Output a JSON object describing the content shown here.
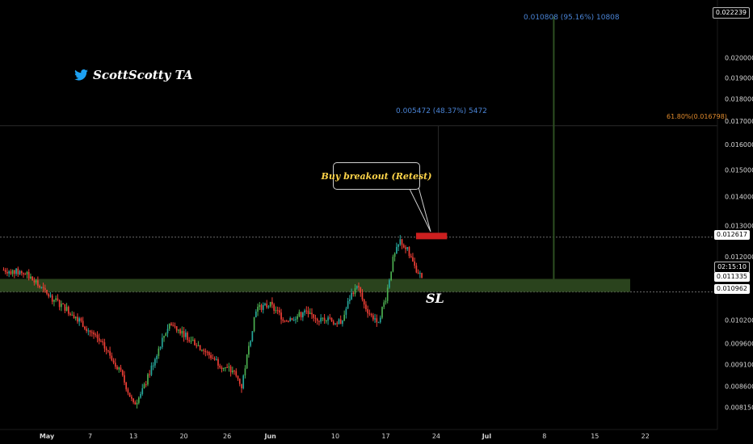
{
  "brand": {
    "icon": "twitter-bird-icon",
    "handle": "ScottScotty TA",
    "color": "#1da1f2"
  },
  "annotations": {
    "callout": "Buy breakout (Retest)",
    "stop_loss": "SL",
    "measure_long": "0.010808 (95.16%) 10808",
    "measure_short": "0.005472 (48.37%) 5472",
    "fib_level": "61.80%(0.016798)"
  },
  "price_tags": {
    "top": "0.022239",
    "resistance": "0.012617",
    "countdown": "02:15:10",
    "current": "0.011335",
    "support": "0.010962"
  },
  "colors": {
    "up": "#26a69a",
    "up_alt": "#4caf50",
    "down": "#ef3f36",
    "zone": "#2f4a20",
    "entry": "#cc1f1f",
    "measure": "#4a84d6",
    "fib": "#e08a2c"
  },
  "chart_data": {
    "type": "candlestick",
    "y_scale": "log",
    "ylim": [
      0.0077,
      0.0232
    ],
    "y_ticks": [
      "0.020000",
      "0.019000",
      "0.018000",
      "0.017000",
      "0.016000",
      "0.015000",
      "0.014000",
      "0.013000",
      "0.012000",
      "0.010200",
      "0.009600",
      "0.009100",
      "0.008600",
      "0.008150"
    ],
    "y_tick_values": [
      0.02,
      0.019,
      0.018,
      0.017,
      0.016,
      0.015,
      0.014,
      0.013,
      0.012,
      0.0102,
      0.0096,
      0.0091,
      0.0086,
      0.00815
    ],
    "x_ticks": [
      "May",
      "7",
      "13",
      "20",
      "26",
      "Jun",
      "10",
      "17",
      "24",
      "Jul",
      "8",
      "15",
      "22"
    ],
    "x_tick_days": [
      0,
      6,
      12,
      19,
      25,
      31,
      40,
      47,
      54,
      61,
      69,
      76,
      83
    ],
    "xlim_days": [
      -6.5,
      93
    ],
    "levels": {
      "resistance": 0.012617,
      "support": 0.010962,
      "current": 0.011335,
      "fib_618": 0.016798,
      "target": 0.022239
    },
    "support_zone": [
      0.010962,
      0.011335
    ],
    "entry_zone": [
      0.01255,
      0.01276
    ],
    "path_days": [
      -6,
      -3,
      0,
      2,
      4,
      6,
      8,
      10,
      11,
      12,
      13,
      14,
      16,
      17,
      18,
      20,
      22,
      24,
      26,
      27,
      28,
      29,
      31,
      33,
      36,
      38,
      39,
      40,
      41,
      42,
      43,
      44,
      45,
      46,
      47,
      48,
      49,
      50,
      51,
      52
    ],
    "path_prices": [
      0.0116,
      0.0115,
      0.0109,
      0.0106,
      0.0103,
      0.0099,
      0.0095,
      0.009,
      0.0086,
      0.0082,
      0.0084,
      0.0088,
      0.0097,
      0.0101,
      0.01,
      0.0097,
      0.0094,
      0.0091,
      0.0089,
      0.0086,
      0.0095,
      0.0105,
      0.0106,
      0.0102,
      0.0104,
      0.0102,
      0.0103,
      0.0101,
      0.0102,
      0.0108,
      0.0112,
      0.0106,
      0.0103,
      0.0102,
      0.0108,
      0.0119,
      0.0125,
      0.0122,
      0.0117,
      0.01138
    ]
  }
}
